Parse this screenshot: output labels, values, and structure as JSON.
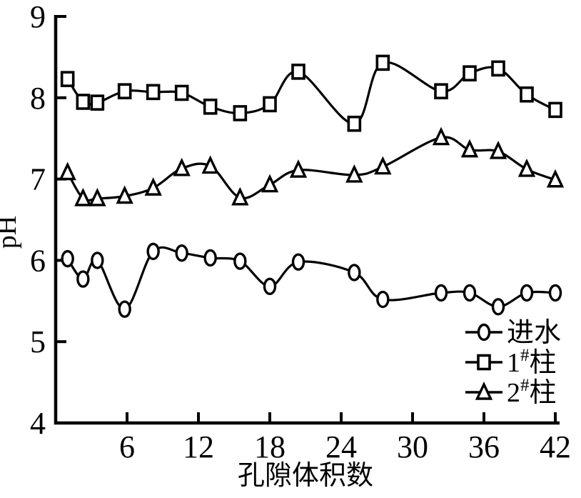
{
  "chart_data": {
    "type": "line",
    "title": "",
    "xlabel": "孔隙体积数",
    "ylabel": "pH",
    "xlim": [
      0,
      42.2
    ],
    "ylim": [
      4,
      9
    ],
    "xticks": [
      6,
      12,
      18,
      24,
      30,
      36,
      42
    ],
    "yticks": [
      4,
      5,
      6,
      7,
      8,
      9
    ],
    "grid": false,
    "legend_position": "lower right inside",
    "line_color": "#000000",
    "background_color": "#ffffff",
    "x": [
      1,
      2.3,
      3.5,
      5.8,
      8.2,
      10.6,
      13,
      15.5,
      18,
      20.4,
      25.1,
      27.5,
      32.4,
      34.8,
      37.2,
      39.6,
      42
    ],
    "series": [
      {
        "name": "进水",
        "marker": "circle",
        "values": [
          6.02,
          5.77,
          6.0,
          5.4,
          6.11,
          6.09,
          6.03,
          5.99,
          5.68,
          5.98,
          5.85,
          5.52,
          5.6,
          5.6,
          5.43,
          5.6,
          5.6
        ]
      },
      {
        "name": "1#柱",
        "marker": "square",
        "values": [
          8.23,
          7.95,
          7.94,
          8.08,
          8.07,
          8.06,
          7.89,
          7.81,
          7.92,
          8.32,
          7.68,
          8.43,
          8.08,
          8.3,
          8.36,
          8.04,
          7.85
        ]
      },
      {
        "name": "2#柱",
        "marker": "triangle",
        "values": [
          7.08,
          6.76,
          6.76,
          6.79,
          6.89,
          7.13,
          7.16,
          6.77,
          6.93,
          7.11,
          7.05,
          7.15,
          7.51,
          7.36,
          7.34,
          7.12,
          6.99
        ]
      }
    ],
    "legend": [
      {
        "pre": "进水",
        "sup": "",
        "post": "",
        "marker": "circle"
      },
      {
        "pre": "1",
        "sup": "#",
        "post": "柱",
        "marker": "square"
      },
      {
        "pre": "2",
        "sup": "#",
        "post": "柱",
        "marker": "triangle"
      }
    ]
  }
}
